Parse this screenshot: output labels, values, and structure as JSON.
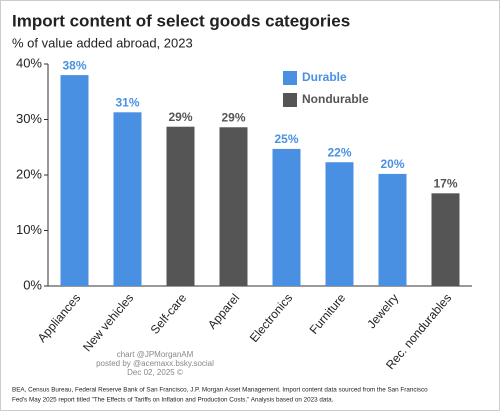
{
  "chart_data": {
    "type": "bar",
    "title": "Import content of select goods categories",
    "subtitle": "% of value added abroad, 2023",
    "categories": [
      "Appliances",
      "New vehicles",
      "Self-care",
      "Apparel",
      "Electronics",
      "Furniture",
      "Jewelry",
      "Rec. nondurables"
    ],
    "series": [
      {
        "name": "Durable",
        "color": "#4a90e2",
        "values": [
          38,
          31.3,
          null,
          null,
          24.7,
          22.3,
          20.2,
          null
        ],
        "value_labels": [
          "38%",
          "31%",
          null,
          null,
          "25%",
          "22%",
          "20%",
          null
        ]
      },
      {
        "name": "Nondurable",
        "color": "#555555",
        "values": [
          null,
          null,
          28.7,
          28.6,
          null,
          null,
          null,
          16.7
        ],
        "value_labels": [
          null,
          null,
          "29%",
          "29%",
          null,
          null,
          null,
          "17%"
        ]
      }
    ],
    "ylim": [
      0,
      40
    ],
    "yticks": [
      {
        "value": 0,
        "label": "0%"
      },
      {
        "value": 10,
        "label": "10%"
      },
      {
        "value": 20,
        "label": "20%"
      },
      {
        "value": 30,
        "label": "30%"
      },
      {
        "value": 40,
        "label": "40%"
      }
    ],
    "grid": false,
    "legend_position": "top",
    "watermark": [
      "chart @JPMorganAM",
      "posted by @acemaxx.bsky.social",
      "Dec 02, 2025 ©"
    ],
    "source": [
      "BEA, Census Bureau, Federal Reserve Bank of San Francisco, J.P. Morgan Asset Management. Import content data sourced from the San Francisco",
      "Fed's May 2025 report titled \"The Effects of Tariffs on Inflation and Production Costs.\" Analysis based on 2023 data."
    ]
  }
}
